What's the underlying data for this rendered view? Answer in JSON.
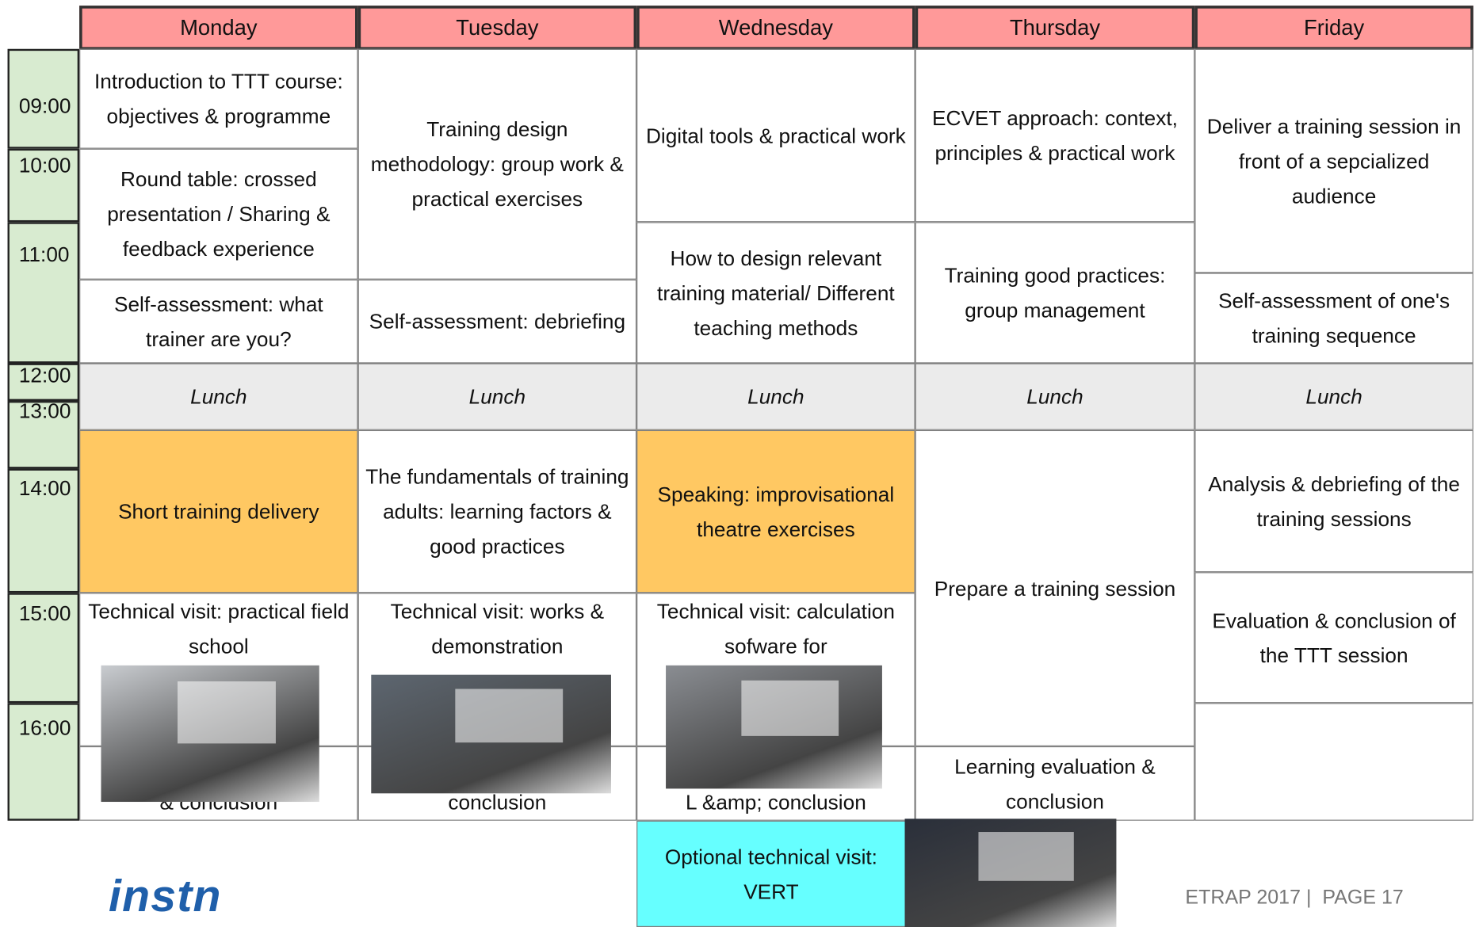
{
  "header": {
    "days": [
      "Monday",
      "Tuesday",
      "Wednesday",
      "Thursday",
      "Friday"
    ]
  },
  "times": [
    "09:00",
    "10:00",
    "11:00",
    "12:00",
    "13:00",
    "14:00",
    "15:00",
    "16:00"
  ],
  "schedule": [
    [
      "Introduction to TTT course: objectives & programme",
      "Round table: crossed presentation / Sharing & feedback experience",
      "Self-assessment: what trainer are you?",
      "Lunch",
      "Short training delivery",
      "Technical visit: practical field school",
      "& conclusion"
    ],
    [
      "Training design methodology: group work & practical exercises",
      "Self-assessment: debriefing",
      "Lunch",
      "The fundamentals of training adults: learning factors & good practices",
      "Technical visit: works & demonstration",
      "conclusion"
    ],
    [
      "Digital tools & practical work",
      "How to design relevant training material/ Different teaching methods",
      "Lunch",
      "Speaking: improvisational theatre exercises",
      "Technical visit: calculation sofware for",
      "L &amp; conclusion"
    ],
    [
      "ECVET approach: context, principles & practical work",
      "Training good practices: group management",
      "Lunch",
      "Prepare a training session",
      "Learning evaluation & conclusion"
    ],
    [
      "Deliver a training session in front of a sepcialized audience",
      "Self-assessment of one's training sequence",
      "Lunch",
      "Analysis & debriefing of the training sessions",
      "Evaluation & conclusion of the TTT session"
    ]
  ],
  "optional": "Optional technical visit: VERT",
  "footer": {
    "logo": "instn",
    "page": "ETRAP 2017 |  PAGE 17"
  }
}
